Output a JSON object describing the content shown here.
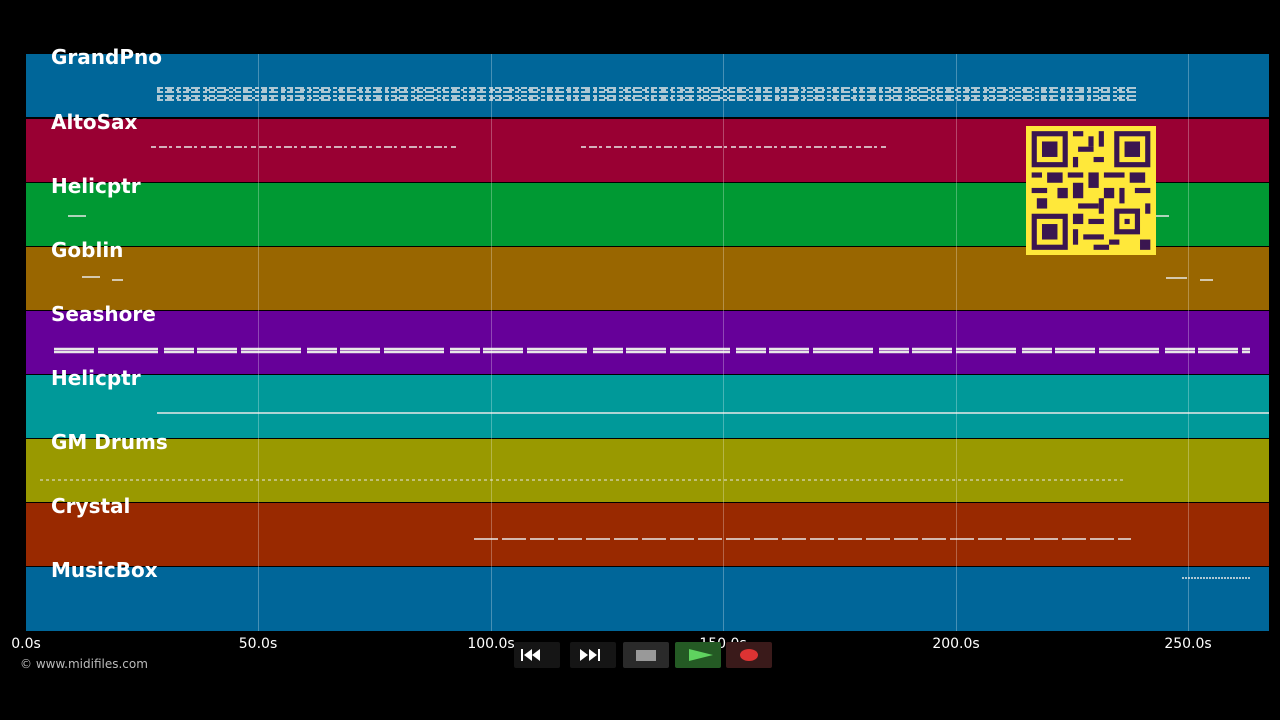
{
  "tracks": [
    {
      "name": "GrandPno",
      "color": "#006699"
    },
    {
      "name": "AltoSax",
      "color": "#990033"
    },
    {
      "name": "Helicptr",
      "color": "#009933"
    },
    {
      "name": "Goblin",
      "color": "#996600"
    },
    {
      "name": "Seashore",
      "color": "#660099"
    },
    {
      "name": "Helicptr",
      "color": "#009999"
    },
    {
      "name": "GM Drums",
      "color": "#999900"
    },
    {
      "name": "Crystal",
      "color": "#992900"
    },
    {
      "name": "MusicBox",
      "color": "#006699"
    }
  ],
  "axis": {
    "max_seconds": 267,
    "ticks": [
      "0.0s",
      "50.0s",
      "100.0s",
      "150.0s",
      "200.0s",
      "250.0s"
    ]
  },
  "copyright": "© www.midifiles.com",
  "controls": [
    {
      "name": "rewind-button",
      "icon": "rewind-icon"
    },
    {
      "name": "fast-forward-button",
      "icon": "fast-forward-icon"
    },
    {
      "name": "stop-button",
      "icon": "stop-icon"
    },
    {
      "name": "play-button",
      "icon": "play-icon"
    },
    {
      "name": "record-button",
      "icon": "record-icon"
    }
  ]
}
